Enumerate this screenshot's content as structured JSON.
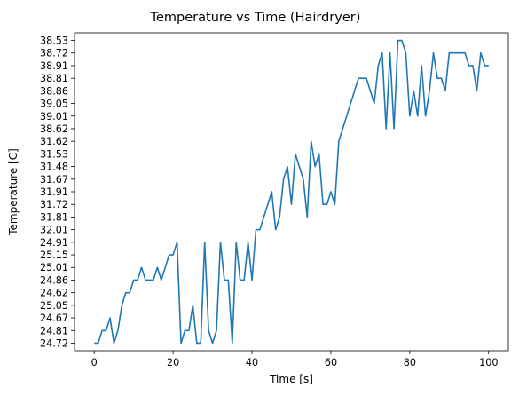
{
  "chart_data": {
    "type": "line",
    "title": "Temperature vs Time (Hairdryer)",
    "xlabel": "Time [s]",
    "ylabel": "Temperature [C]",
    "xlim": [
      -5,
      105
    ],
    "x_ticks": [
      0,
      20,
      40,
      60,
      80,
      100
    ],
    "y_categories": [
      "24.72",
      "24.81",
      "24.67",
      "25.05",
      "24.62",
      "24.86",
      "25.01",
      "25.15",
      "24.91",
      "32.01",
      "31.81",
      "31.72",
      "31.91",
      "31.67",
      "31.48",
      "31.53",
      "31.62",
      "38.62",
      "39.01",
      "39.05",
      "38.86",
      "38.81",
      "38.91",
      "38.72",
      "38.53"
    ],
    "series_color": "#1f77b4",
    "series": [
      {
        "x": [
          0,
          1,
          2,
          3,
          4,
          5,
          6,
          7,
          8,
          9,
          10,
          11,
          12,
          13,
          14,
          15,
          16,
          17,
          18,
          19,
          20,
          21,
          22,
          23,
          24,
          25,
          26,
          27,
          28,
          29,
          30,
          31,
          32,
          33,
          34,
          35,
          36,
          37,
          38,
          39,
          40,
          41,
          42,
          43,
          44,
          45,
          46,
          47,
          48,
          49,
          50,
          51,
          52,
          53,
          54,
          55,
          56,
          57,
          58,
          59,
          60,
          61,
          62,
          63,
          64,
          65,
          66,
          67,
          68,
          69,
          70,
          71,
          72,
          73,
          74,
          75,
          76,
          77,
          78,
          79,
          80,
          81,
          82,
          83,
          84,
          85,
          86,
          87,
          88,
          89,
          90,
          91,
          92,
          93,
          94,
          95,
          96,
          97,
          98,
          99,
          100
        ],
        "y": [
          "24.72",
          "24.72",
          "24.81",
          "24.81",
          "24.67",
          "24.72",
          "24.81",
          "25.05",
          "24.62",
          "24.62",
          "24.86",
          "24.86",
          "25.01",
          "24.86",
          "24.86",
          "24.86",
          "25.01",
          "24.86",
          "25.01",
          "25.15",
          "25.15",
          "24.91",
          "24.72",
          "24.81",
          "24.81",
          "25.05",
          "24.72",
          "24.72",
          "24.91",
          "24.81",
          "24.72",
          "24.81",
          "24.91",
          "24.86",
          "24.86",
          "24.72",
          "24.91",
          "24.86",
          "24.86",
          "24.91",
          "24.86",
          "32.01",
          "32.01",
          "31.81",
          "31.72",
          "31.91",
          "32.01",
          "31.81",
          "31.67",
          "31.48",
          "31.72",
          "31.53",
          "31.48",
          "31.67",
          "31.81",
          "31.62",
          "31.48",
          "31.53",
          "31.72",
          "31.72",
          "31.91",
          "31.72",
          "31.62",
          "38.62",
          "39.01",
          "39.05",
          "38.86",
          "38.81",
          "38.81",
          "38.81",
          "38.86",
          "39.05",
          "38.91",
          "38.72",
          "38.62",
          "38.72",
          "38.62",
          "38.53",
          "38.53",
          "38.72",
          "39.01",
          "38.86",
          "39.01",
          "38.91",
          "39.01",
          "38.86",
          "38.72",
          "38.81",
          "38.81",
          "38.86",
          "38.72",
          "38.72",
          "38.72",
          "38.72",
          "38.72",
          "38.91",
          "38.91",
          "38.86",
          "38.72",
          "38.91",
          "38.91"
        ]
      }
    ]
  }
}
